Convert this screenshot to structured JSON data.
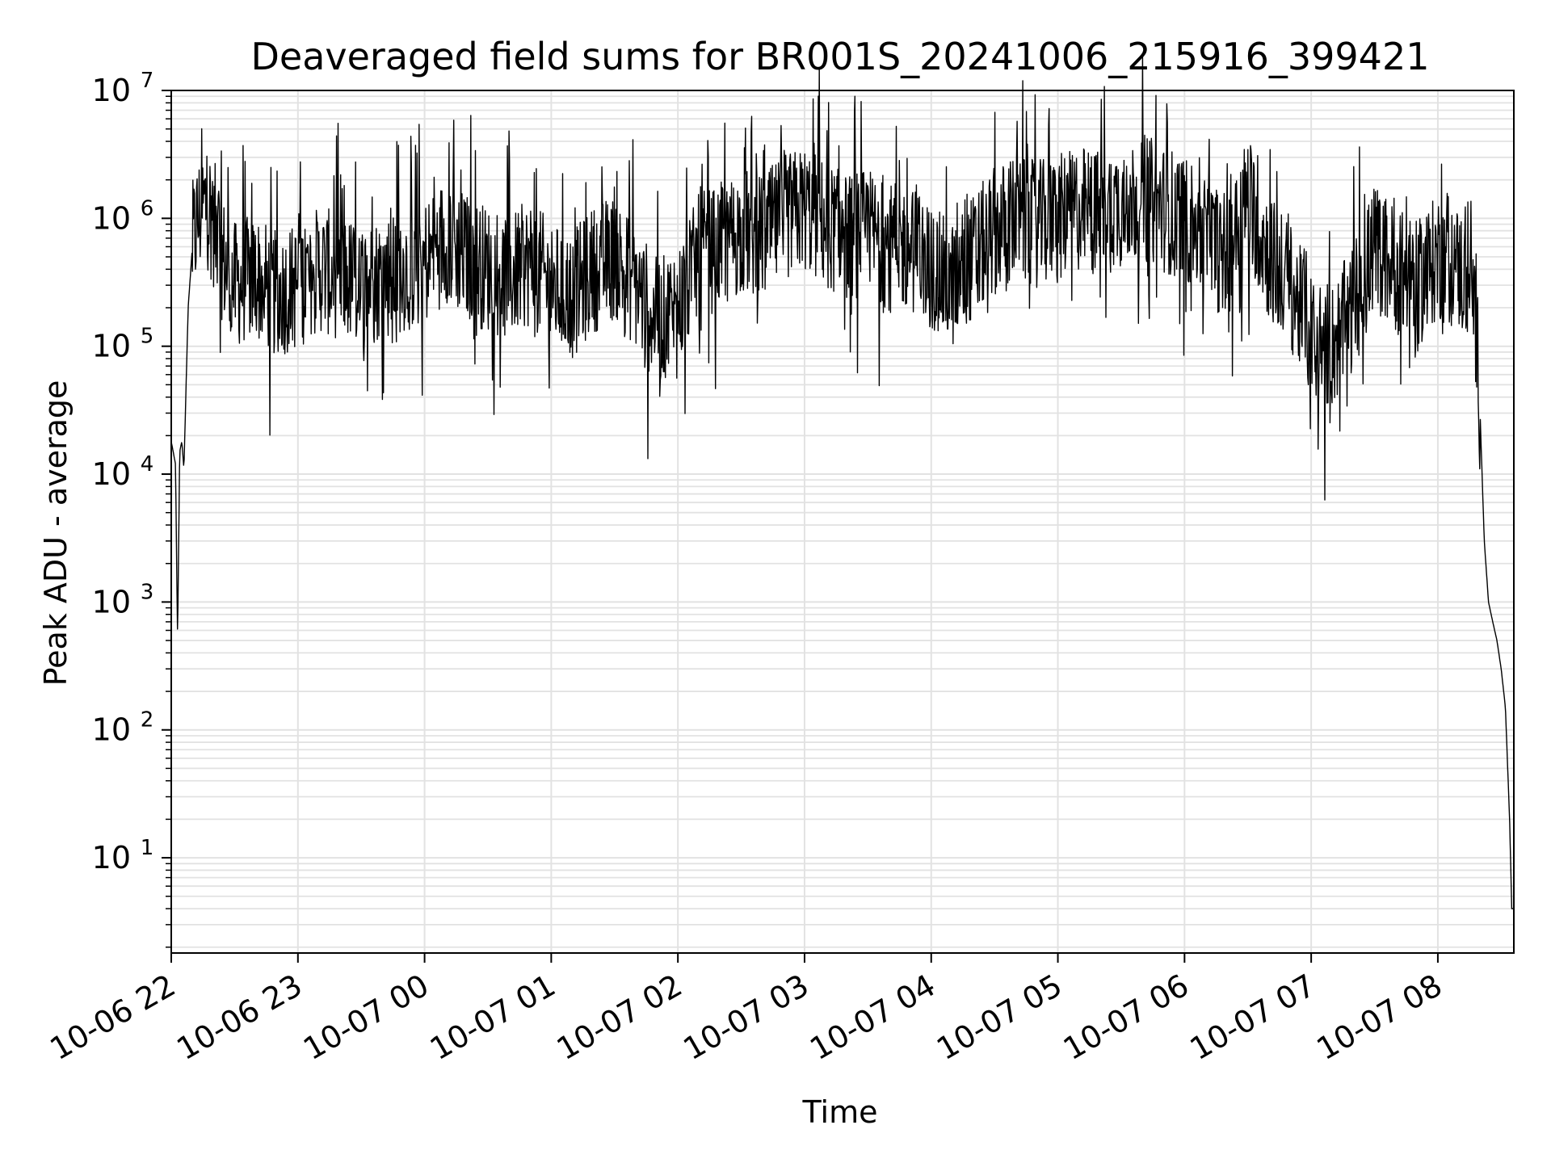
{
  "chart_data": {
    "type": "line",
    "title": "Deaveraged field sums for BR001S_20241006_215916_399421",
    "xlabel": "Time",
    "ylabel": "Peak ADU - average",
    "yscale": "log",
    "ylim": [
      1.8,
      10000000
    ],
    "xlim": [
      "2024-10-06 22:00",
      "2024-10-07 08:36"
    ],
    "grid": true,
    "x_ticks": [
      "10-06 22",
      "10-06 23",
      "10-07 00",
      "10-07 01",
      "10-07 02",
      "10-07 03",
      "10-07 04",
      "10-07 05",
      "10-07 06",
      "10-07 07",
      "10-07 08"
    ],
    "y_ticks": [
      {
        "base": "10",
        "exp": "1"
      },
      {
        "base": "10",
        "exp": "2"
      },
      {
        "base": "10",
        "exp": "3"
      },
      {
        "base": "10",
        "exp": "4"
      },
      {
        "base": "10",
        "exp": "5"
      },
      {
        "base": "10",
        "exp": "6"
      },
      {
        "base": "10",
        "exp": "7"
      }
    ],
    "series": [
      {
        "color": "#000000",
        "x": [
          "2024-10-06 22:00",
          "2024-10-06 22:02",
          "2024-10-06 22:03",
          "2024-10-06 22:04",
          "2024-10-06 22:05",
          "2024-10-06 22:06",
          "2024-10-06 22:08",
          "2024-10-06 22:10",
          "2024-10-06 22:12",
          "2024-10-06 22:14",
          "2024-10-06 22:16",
          "2024-10-06 22:18",
          "2024-10-06 22:20",
          "2024-10-06 22:22",
          "2024-10-06 22:24",
          "2024-10-06 22:30",
          "2024-10-06 22:40",
          "2024-10-06 22:50",
          "2024-10-06 23:00",
          "2024-10-06 23:10",
          "2024-10-06 23:20",
          "2024-10-06 23:30",
          "2024-10-06 23:40",
          "2024-10-06 23:50",
          "2024-10-07 00:00",
          "2024-10-07 00:10",
          "2024-10-07 00:20",
          "2024-10-07 00:30",
          "2024-10-07 00:40",
          "2024-10-07 00:50",
          "2024-10-07 01:00",
          "2024-10-07 01:10",
          "2024-10-07 01:20",
          "2024-10-07 01:30",
          "2024-10-07 01:40",
          "2024-10-07 01:50",
          "2024-10-07 02:00",
          "2024-10-07 02:10",
          "2024-10-07 02:20",
          "2024-10-07 02:30",
          "2024-10-07 02:40",
          "2024-10-07 02:50",
          "2024-10-07 03:00",
          "2024-10-07 03:10",
          "2024-10-07 03:20",
          "2024-10-07 03:30",
          "2024-10-07 03:40",
          "2024-10-07 03:50",
          "2024-10-07 04:00",
          "2024-10-07 04:10",
          "2024-10-07 04:20",
          "2024-10-07 04:30",
          "2024-10-07 04:40",
          "2024-10-07 04:50",
          "2024-10-07 05:00",
          "2024-10-07 05:10",
          "2024-10-07 05:20",
          "2024-10-07 05:30",
          "2024-10-07 05:40",
          "2024-10-07 05:50",
          "2024-10-07 06:00",
          "2024-10-07 06:10",
          "2024-10-07 06:20",
          "2024-10-07 06:30",
          "2024-10-07 06:40",
          "2024-10-07 06:50",
          "2024-10-07 07:00",
          "2024-10-07 07:10",
          "2024-10-07 07:20",
          "2024-10-07 07:30",
          "2024-10-07 07:40",
          "2024-10-07 07:50",
          "2024-10-07 08:00",
          "2024-10-07 08:10",
          "2024-10-07 08:15",
          "2024-10-07 08:18",
          "2024-10-07 08:20",
          "2024-10-07 08:22",
          "2024-10-07 08:24",
          "2024-10-07 08:26",
          "2024-10-07 08:28",
          "2024-10-07 08:30",
          "2024-10-07 08:32",
          "2024-10-07 08:34",
          "2024-10-07 08:35",
          "2024-10-07 08:36"
        ],
        "y": [
          18000,
          12000,
          500,
          15000,
          18000,
          11000,
          200000,
          600000,
          900000,
          1100000,
          1300000,
          1200000,
          900000,
          800000,
          500000,
          300000,
          350000,
          250000,
          300000,
          400000,
          350000,
          300000,
          350000,
          400000,
          450000,
          700000,
          500000,
          400000,
          350000,
          450000,
          300000,
          250000,
          400000,
          500000,
          300000,
          150000,
          200000,
          500000,
          600000,
          800000,
          700000,
          1000000,
          1200000,
          900000,
          700000,
          800000,
          600000,
          600000,
          400000,
          300000,
          500000,
          800000,
          1000000,
          900000,
          1000000,
          1200000,
          1100000,
          1300000,
          1500000,
          1200000,
          1000000,
          700000,
          500000,
          1500000,
          500000,
          300000,
          120000,
          100000,
          200000,
          600000,
          400000,
          300000,
          500000,
          400000,
          300000,
          200000,
          30000,
          3000,
          1000,
          700,
          500,
          300,
          150,
          20,
          4,
          4
        ]
      }
    ]
  }
}
